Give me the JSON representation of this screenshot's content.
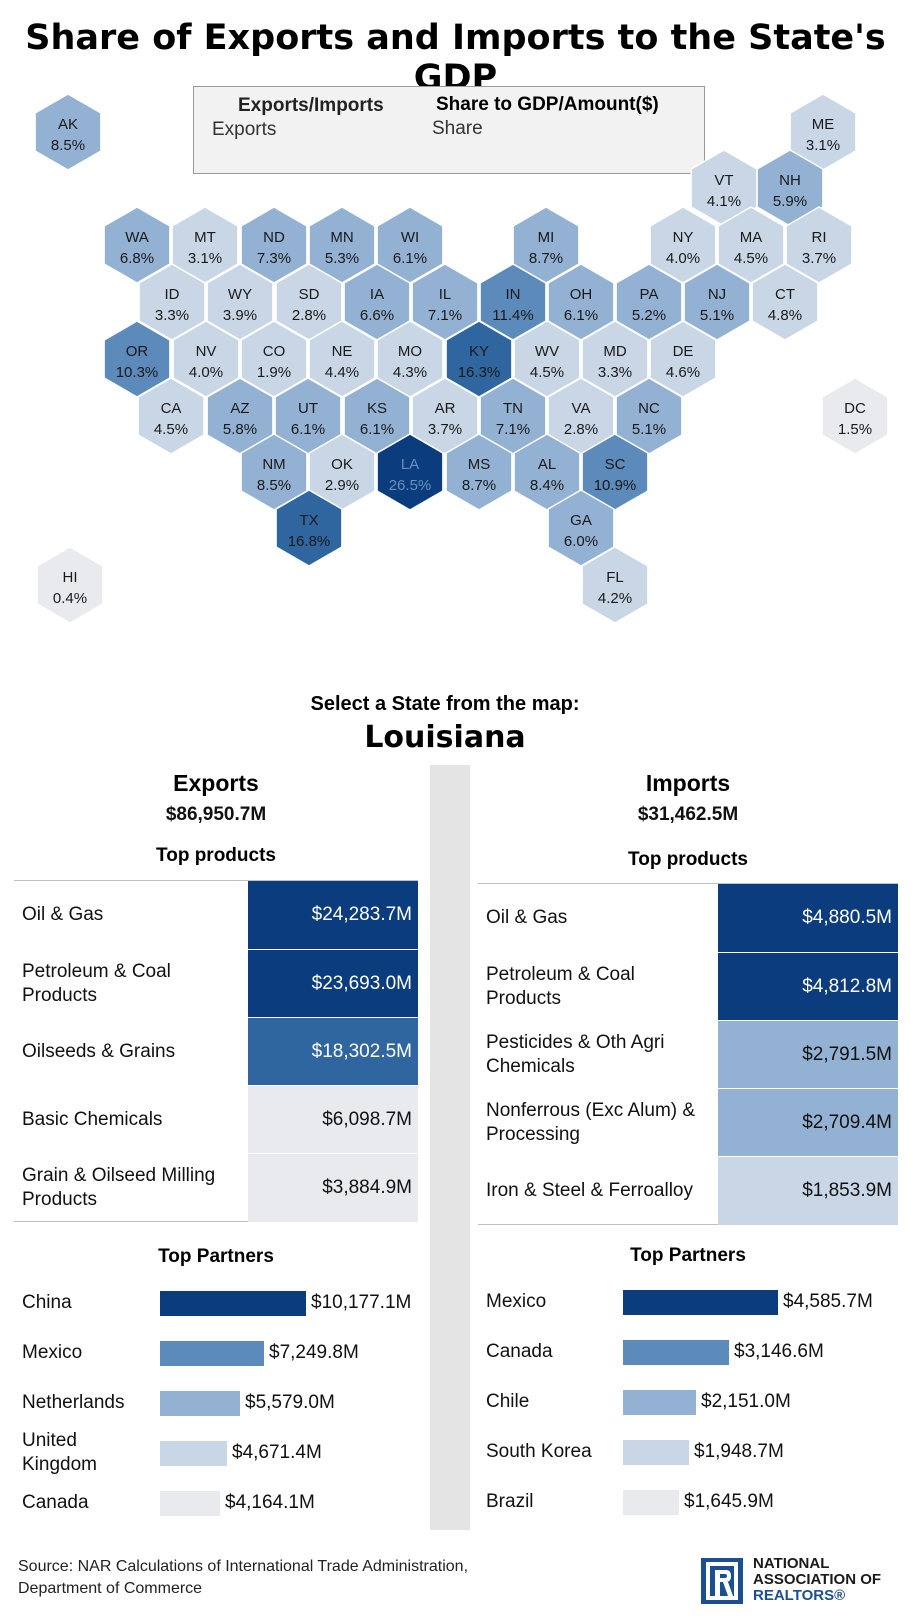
{
  "title": "Share of Exports and Imports to the State's GDP",
  "legend": {
    "col1_header": "Exports/Imports",
    "col2_header": "Share to GDP/Amount($)",
    "col1_value": "Exports",
    "col2_value": "Share"
  },
  "colors": {
    "darkest": "#0b3c7d",
    "dark": "#2f66a0",
    "mid": "#5b8abb",
    "light": "#93b1d2",
    "lighter": "#c8d6e6",
    "lightest": "#e8eaee",
    "divider": "#e4e4e4"
  },
  "chart_data": [
    {
      "type": "heatmap",
      "title": "Share of Exports and Imports to the State's GDP",
      "measure": "Exports share of GDP (%)",
      "states": [
        {
          "abbr": "AK",
          "label": "8.5%",
          "value": 8.5
        },
        {
          "abbr": "ME",
          "label": "3.1%",
          "value": 3.1
        },
        {
          "abbr": "VT",
          "label": "4.1%",
          "value": 4.1
        },
        {
          "abbr": "NH",
          "label": "5.9%",
          "value": 5.9
        },
        {
          "abbr": "WA",
          "label": "6.8%",
          "value": 6.8
        },
        {
          "abbr": "MT",
          "label": "3.1%",
          "value": 3.1
        },
        {
          "abbr": "ND",
          "label": "7.3%",
          "value": 7.3
        },
        {
          "abbr": "MN",
          "label": "5.3%",
          "value": 5.3
        },
        {
          "abbr": "WI",
          "label": "6.1%",
          "value": 6.1
        },
        {
          "abbr": "MI",
          "label": "8.7%",
          "value": 8.7
        },
        {
          "abbr": "NY",
          "label": "4.0%",
          "value": 4.0
        },
        {
          "abbr": "MA",
          "label": "4.5%",
          "value": 4.5
        },
        {
          "abbr": "RI",
          "label": "3.7%",
          "value": 3.7
        },
        {
          "abbr": "ID",
          "label": "3.3%",
          "value": 3.3
        },
        {
          "abbr": "WY",
          "label": "3.9%",
          "value": 3.9
        },
        {
          "abbr": "SD",
          "label": "2.8%",
          "value": 2.8
        },
        {
          "abbr": "IA",
          "label": "6.6%",
          "value": 6.6
        },
        {
          "abbr": "IL",
          "label": "7.1%",
          "value": 7.1
        },
        {
          "abbr": "IN",
          "label": "11.4%",
          "value": 11.4
        },
        {
          "abbr": "OH",
          "label": "6.1%",
          "value": 6.1
        },
        {
          "abbr": "PA",
          "label": "5.2%",
          "value": 5.2
        },
        {
          "abbr": "NJ",
          "label": "5.1%",
          "value": 5.1
        },
        {
          "abbr": "CT",
          "label": "4.8%",
          "value": 4.8
        },
        {
          "abbr": "OR",
          "label": "10.3%",
          "value": 10.3
        },
        {
          "abbr": "NV",
          "label": "4.0%",
          "value": 4.0
        },
        {
          "abbr": "CO",
          "label": "1.9%",
          "value": 1.9
        },
        {
          "abbr": "NE",
          "label": "4.4%",
          "value": 4.4
        },
        {
          "abbr": "MO",
          "label": "4.3%",
          "value": 4.3
        },
        {
          "abbr": "KY",
          "label": "16.3%",
          "value": 16.3
        },
        {
          "abbr": "WV",
          "label": "4.5%",
          "value": 4.5
        },
        {
          "abbr": "MD",
          "label": "3.3%",
          "value": 3.3
        },
        {
          "abbr": "DE",
          "label": "4.6%",
          "value": 4.6
        },
        {
          "abbr": "CA",
          "label": "4.5%",
          "value": 4.5
        },
        {
          "abbr": "AZ",
          "label": "5.8%",
          "value": 5.8
        },
        {
          "abbr": "UT",
          "label": "6.1%",
          "value": 6.1
        },
        {
          "abbr": "KS",
          "label": "6.1%",
          "value": 6.1
        },
        {
          "abbr": "AR",
          "label": "3.7%",
          "value": 3.7
        },
        {
          "abbr": "TN",
          "label": "7.1%",
          "value": 7.1
        },
        {
          "abbr": "VA",
          "label": "2.8%",
          "value": 2.8
        },
        {
          "abbr": "NC",
          "label": "5.1%",
          "value": 5.1
        },
        {
          "abbr": "DC",
          "label": "1.5%",
          "value": 1.5
        },
        {
          "abbr": "NM",
          "label": "8.5%",
          "value": 8.5
        },
        {
          "abbr": "OK",
          "label": "2.9%",
          "value": 2.9
        },
        {
          "abbr": "LA",
          "label": "26.5%",
          "value": 26.5
        },
        {
          "abbr": "MS",
          "label": "8.7%",
          "value": 8.7
        },
        {
          "abbr": "AL",
          "label": "8.4%",
          "value": 8.4
        },
        {
          "abbr": "SC",
          "label": "10.9%",
          "value": 10.9
        },
        {
          "abbr": "TX",
          "label": "16.8%",
          "value": 16.8
        },
        {
          "abbr": "GA",
          "label": "6.0%",
          "value": 6.0
        },
        {
          "abbr": "HI",
          "label": "0.4%",
          "value": 0.4
        },
        {
          "abbr": "FL",
          "label": "4.2%",
          "value": 4.2
        }
      ]
    },
    {
      "type": "table",
      "title": "Exports - Top products",
      "categories": [
        "Oil & Gas",
        "Petroleum & Coal Products",
        "Oilseeds & Grains",
        "Basic Chemicals",
        "Grain & Oilseed Milling Products"
      ],
      "values": [
        24283.7,
        23693.0,
        18302.5,
        6098.7,
        3884.9
      ],
      "labels": [
        "$24,283.7M",
        "$23,693.0M",
        "$18,302.5M",
        "$6,098.7M",
        "$3,884.9M"
      ]
    },
    {
      "type": "table",
      "title": "Imports - Top products",
      "categories": [
        "Oil & Gas",
        "Petroleum & Coal Products",
        "Pesticides & Oth Agri Chemicals",
        "Nonferrous (Exc Alum) & Processing",
        "Iron & Steel & Ferroalloy"
      ],
      "values": [
        4880.5,
        4812.8,
        2791.5,
        2709.4,
        1853.9
      ],
      "labels": [
        "$4,880.5M",
        "$4,812.8M",
        "$2,791.5M",
        "$2,709.4M",
        "$1,853.9M"
      ]
    },
    {
      "type": "bar",
      "title": "Exports - Top Partners",
      "categories": [
        "China",
        "Mexico",
        "Netherlands",
        "United Kingdom",
        "Canada"
      ],
      "values": [
        10177.1,
        7249.8,
        5579.0,
        4671.4,
        4164.1
      ],
      "labels": [
        "$10,177.1M",
        "$7,249.8M",
        "$5,579.0M",
        "$4,671.4M",
        "$4,164.1M"
      ]
    },
    {
      "type": "bar",
      "title": "Imports - Top Partners",
      "categories": [
        "Mexico",
        "Canada",
        "Chile",
        "South Korea",
        "Brazil"
      ],
      "values": [
        4585.7,
        3146.6,
        2151.0,
        1948.7,
        1645.9
      ],
      "labels": [
        "$4,585.7M",
        "$3,146.6M",
        "$2,151.0M",
        "$1,948.7M",
        "$1,645.9M"
      ]
    }
  ],
  "selection": {
    "prompt": "Select a State from the map:",
    "state": "Louisiana"
  },
  "exports": {
    "title": "Exports",
    "total": "$86,950.7M",
    "products_title": "Top products",
    "partners_title": "Top Partners"
  },
  "imports": {
    "title": "Imports",
    "total": "$31,462.5M",
    "products_title": "Top products",
    "partners_title": "Top Partners"
  },
  "source": {
    "line1": "Source: NAR Calculations of International Trade Administration,",
    "line2": "Department of Commerce"
  },
  "logo": {
    "line1": "NATIONAL",
    "line2": "ASSOCIATION OF",
    "line3": "REALTORS®"
  }
}
